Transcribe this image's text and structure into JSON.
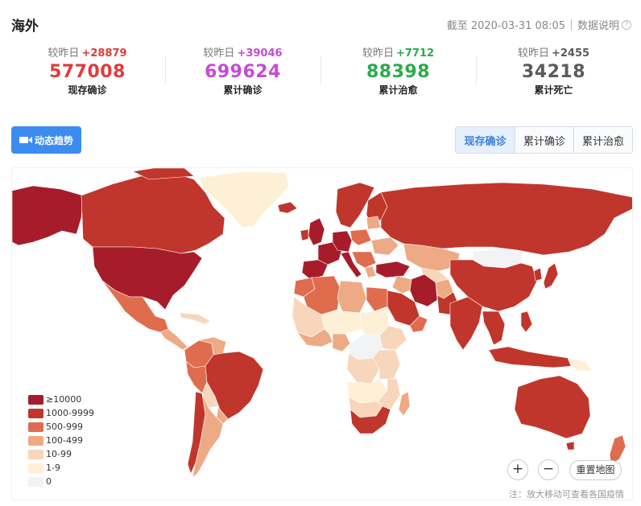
{
  "header": {
    "title": "海外",
    "timestamp": "截至 2020-03-31 08:05",
    "data_note": "数据说明",
    "help_icon": "help-circle-icon"
  },
  "stats": [
    {
      "delta_label": "较昨日",
      "delta": "+28879",
      "value": "577008",
      "label": "现存确诊",
      "color": "#e23a3a"
    },
    {
      "delta_label": "较昨日",
      "delta": "+39046",
      "value": "699624",
      "label": "累计确诊",
      "color": "#c54ad6"
    },
    {
      "delta_label": "较昨日",
      "delta": "+7712",
      "value": "88398",
      "label": "累计治愈",
      "color": "#2aab4b"
    },
    {
      "delta_label": "较昨日",
      "delta": "+2455",
      "value": "34218",
      "label": "累计死亡",
      "color": "#5b5b5b"
    }
  ],
  "trend_button": {
    "label": "动态趋势",
    "icon": "video-camera-icon"
  },
  "tabs": [
    {
      "label": "现存确诊",
      "active": true
    },
    {
      "label": "累计确诊",
      "active": false
    },
    {
      "label": "累计治愈",
      "active": false
    }
  ],
  "legend": [
    {
      "label": "≥10000",
      "color": "#a71c2b"
    },
    {
      "label": "1000-9999",
      "color": "#c0362c"
    },
    {
      "label": "500-999",
      "color": "#e06c4e"
    },
    {
      "label": "100-499",
      "color": "#eeaa84"
    },
    {
      "label": "10-99",
      "color": "#f8d6bb"
    },
    {
      "label": "1-9",
      "color": "#fdf0d6"
    },
    {
      "label": "0",
      "color": "#f2f3f5"
    }
  ],
  "map_controls": {
    "zoom_in": "+",
    "zoom_out": "−",
    "reset": "重置地图"
  },
  "note": "注：放大移动可查看各国疫情"
}
